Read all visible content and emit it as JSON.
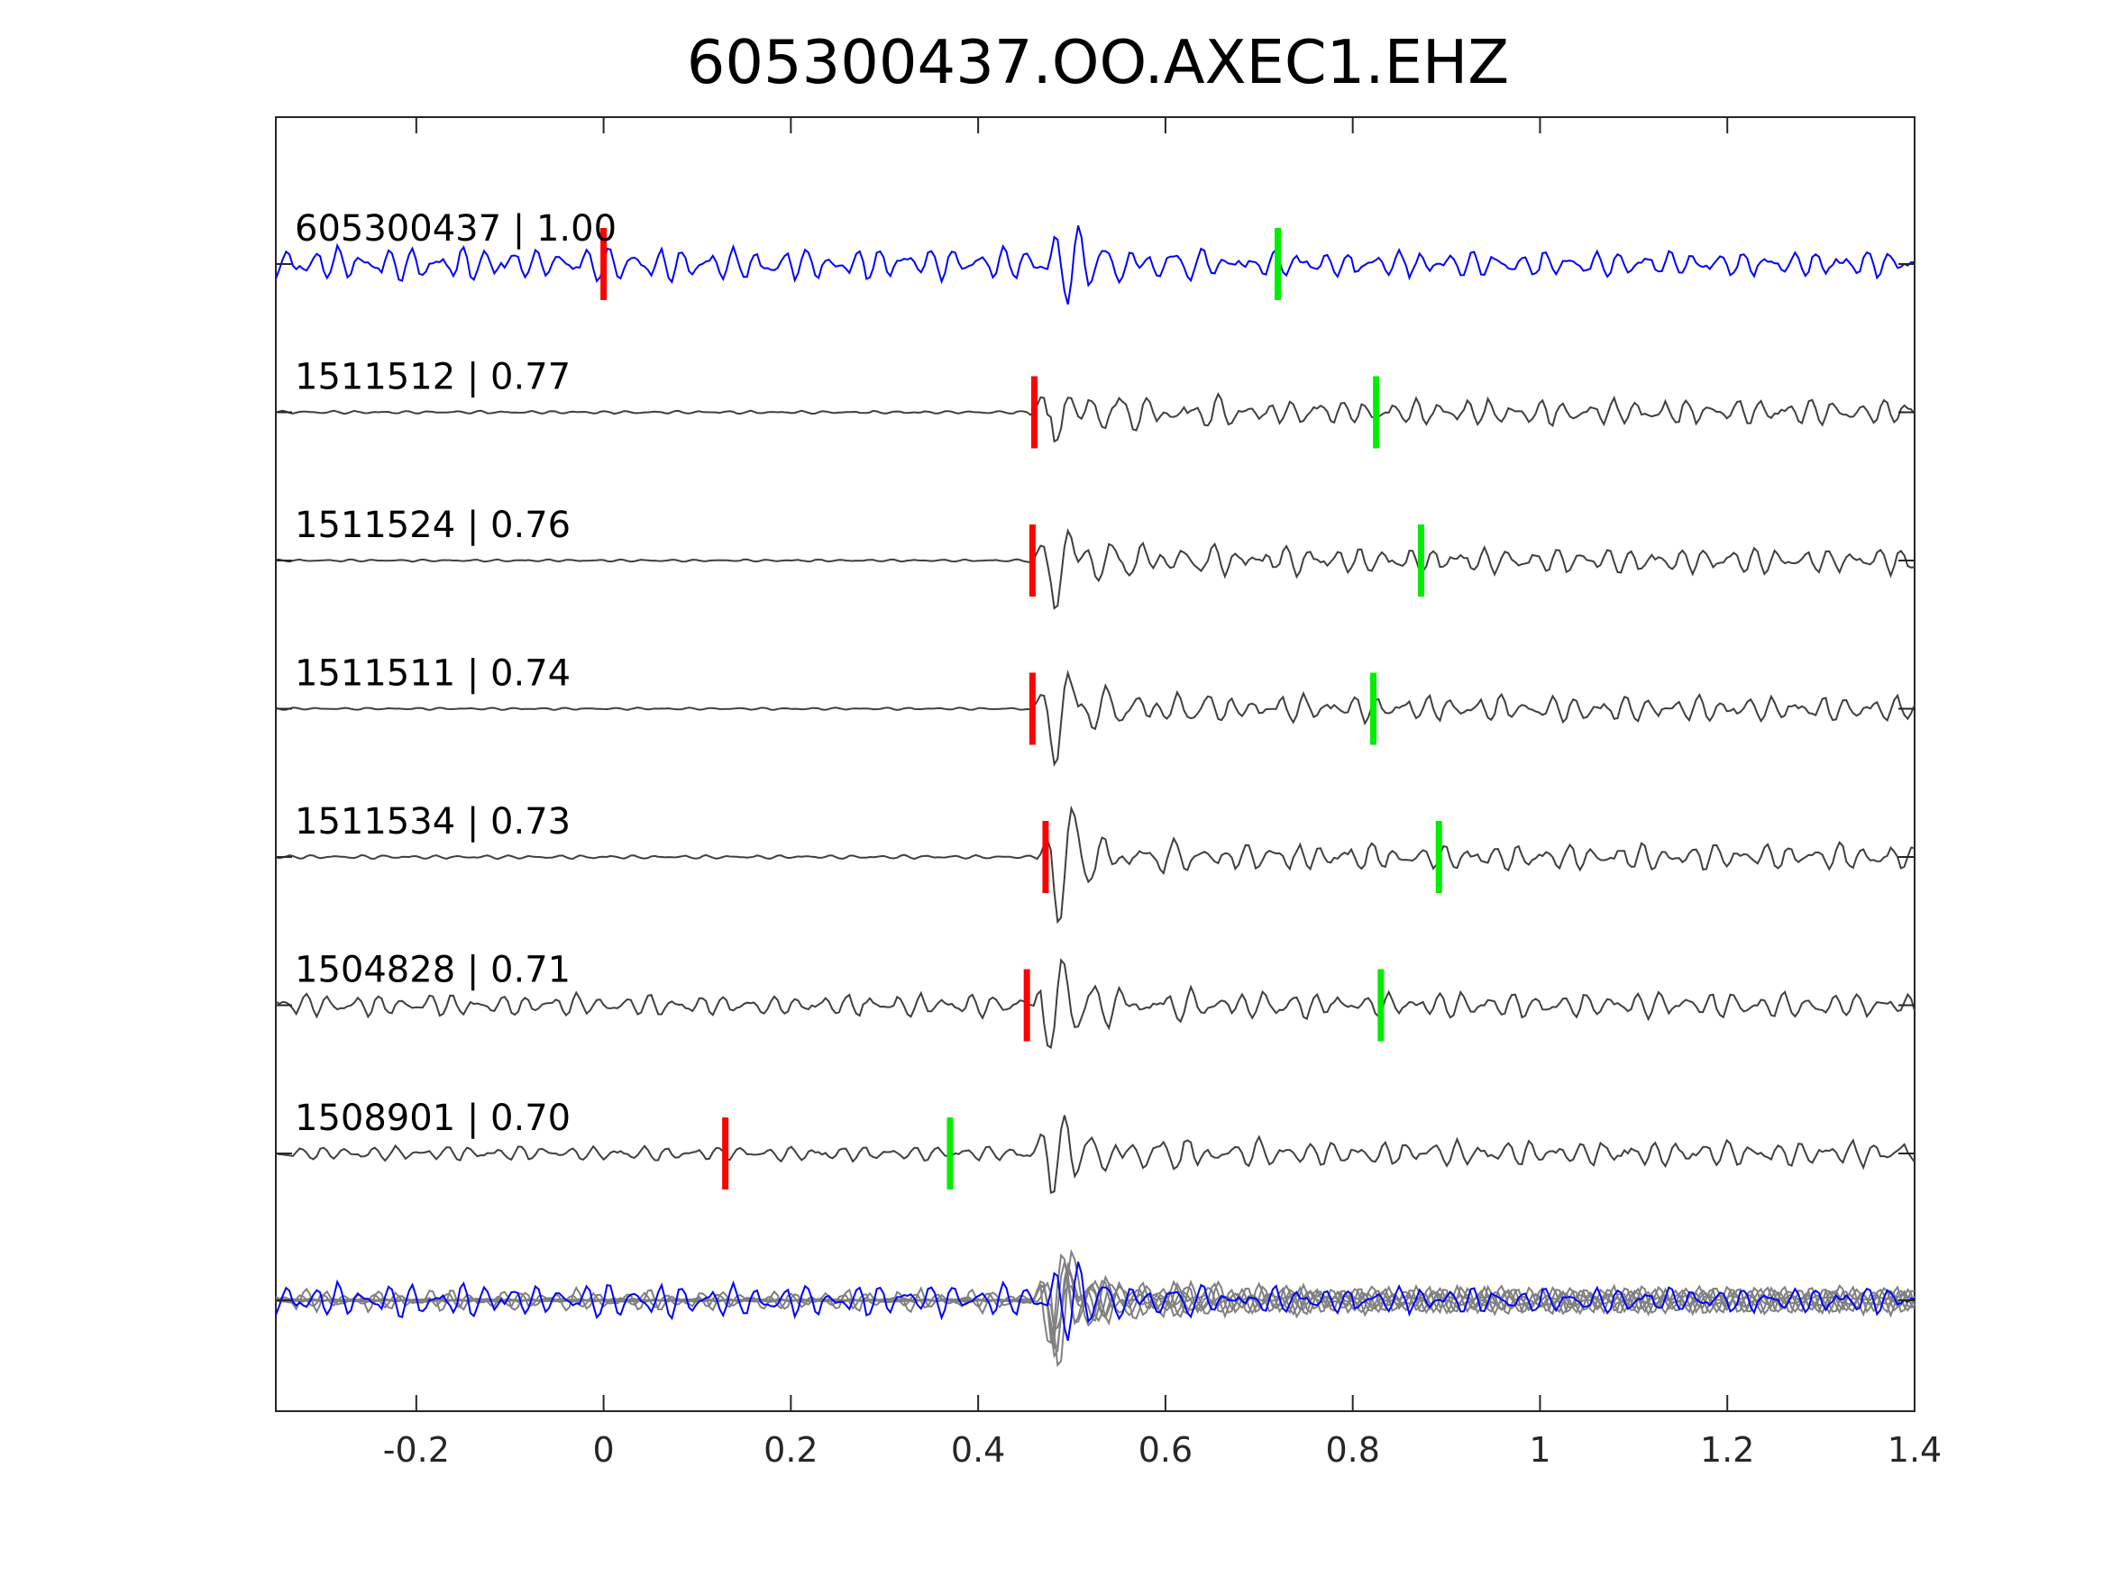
{
  "chart_data": {
    "type": "line",
    "title": "605300437.OO.AXEC1.EHZ",
    "xlabel": "",
    "ylabel": "",
    "xlim": [
      -0.35,
      1.4
    ],
    "xticks": [
      -0.2,
      0,
      0.2,
      0.4,
      0.6,
      0.8,
      1,
      1.2,
      1.4
    ],
    "xtick_labels": [
      "-0.2",
      "0",
      "0.2",
      "0.4",
      "0.6",
      "0.8",
      "1",
      "1.2",
      "1.4"
    ],
    "grid": false,
    "colors": {
      "template": "#0000ff",
      "match": "#3f3f3f",
      "overlay": "#808080",
      "p_pick": "#ff0000",
      "s_pick": "#00ee00"
    },
    "series": [
      {
        "name": "605300437 | 1.00",
        "p_pick": 0.0,
        "s_pick": 0.72,
        "onset": 0.49,
        "pre_noise": 0.45,
        "style": "template"
      },
      {
        "name": "1511512 | 0.77",
        "p_pick": 0.46,
        "s_pick": 0.825,
        "onset": 0.475,
        "pre_noise": 0.04,
        "style": "match"
      },
      {
        "name": "1511524 | 0.76",
        "p_pick": 0.458,
        "s_pick": 0.873,
        "onset": 0.475,
        "pre_noise": 0.03,
        "style": "match"
      },
      {
        "name": "1511511 | 0.74",
        "p_pick": 0.458,
        "s_pick": 0.822,
        "onset": 0.475,
        "pre_noise": 0.03,
        "style": "match"
      },
      {
        "name": "1511534 | 0.73",
        "p_pick": 0.472,
        "s_pick": 0.892,
        "onset": 0.48,
        "pre_noise": 0.05,
        "style": "match"
      },
      {
        "name": "1504828 | 0.71",
        "p_pick": 0.452,
        "s_pick": 0.83,
        "onset": 0.47,
        "pre_noise": 0.3,
        "style": "match"
      },
      {
        "name": "1508901 | 0.70",
        "p_pick": 0.13,
        "s_pick": 0.37,
        "onset": 0.475,
        "pre_noise": 0.2,
        "style": "match"
      }
    ],
    "stack": {
      "name": "",
      "traces": "all overlaid (template in blue, matches in gray)"
    }
  }
}
